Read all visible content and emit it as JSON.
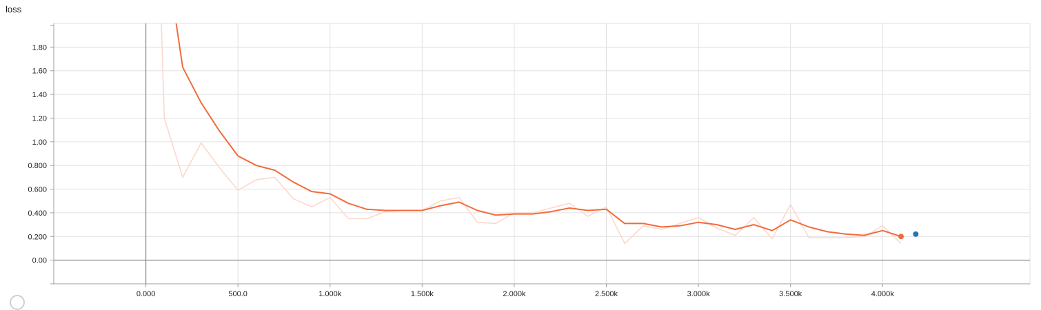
{
  "chart_data": {
    "type": "line",
    "title": "loss",
    "xlabel": "",
    "ylabel": "",
    "xlim": [
      -500,
      4800
    ],
    "ylim": [
      -0.2,
      2.0
    ],
    "grid": true,
    "x_ticks": [
      {
        "value": 0,
        "label": "0.000"
      },
      {
        "value": 500,
        "label": "500.0"
      },
      {
        "value": 1000,
        "label": "1.000k"
      },
      {
        "value": 1500,
        "label": "1.500k"
      },
      {
        "value": 2000,
        "label": "2.000k"
      },
      {
        "value": 2500,
        "label": "2.500k"
      },
      {
        "value": 3000,
        "label": "3.000k"
      },
      {
        "value": 3500,
        "label": "3.500k"
      },
      {
        "value": 4000,
        "label": "4.000k"
      }
    ],
    "y_ticks": [
      {
        "value": 0.0,
        "label": "0.00"
      },
      {
        "value": 0.2,
        "label": "0.200"
      },
      {
        "value": 0.4,
        "label": "0.400"
      },
      {
        "value": 0.6,
        "label": "0.600"
      },
      {
        "value": 0.8,
        "label": "0.800"
      },
      {
        "value": 1.0,
        "label": "1.00"
      },
      {
        "value": 1.2,
        "label": "1.20"
      },
      {
        "value": 1.4,
        "label": "1.40"
      },
      {
        "value": 1.6,
        "label": "1.60"
      },
      {
        "value": 1.8,
        "label": "1.80"
      }
    ],
    "series": [
      {
        "role": "raw",
        "color": "#fcd8cc",
        "x": [
          80,
          100,
          200,
          300,
          400,
          500,
          600,
          700,
          800,
          900,
          1000,
          1100,
          1200,
          1300,
          1400,
          1500,
          1600,
          1700,
          1800,
          1900,
          2000,
          2100,
          2200,
          2300,
          2400,
          2500,
          2600,
          2700,
          2800,
          2900,
          3000,
          3100,
          3200,
          3300,
          3400,
          3500,
          3600,
          3700,
          3800,
          3900,
          4000,
          4100
        ],
        "values": [
          2.2,
          1.2,
          0.7,
          0.99,
          0.78,
          0.59,
          0.68,
          0.7,
          0.52,
          0.45,
          0.53,
          0.35,
          0.35,
          0.41,
          0.42,
          0.42,
          0.5,
          0.53,
          0.32,
          0.31,
          0.4,
          0.4,
          0.44,
          0.48,
          0.37,
          0.45,
          0.14,
          0.29,
          0.26,
          0.31,
          0.36,
          0.27,
          0.21,
          0.36,
          0.18,
          0.47,
          0.19,
          0.19,
          0.19,
          0.2,
          0.29,
          0.14
        ]
      },
      {
        "role": "smoothed",
        "color": "#f26b3a",
        "x": [
          160,
          200,
          300,
          400,
          500,
          600,
          700,
          800,
          900,
          1000,
          1100,
          1200,
          1300,
          1400,
          1500,
          1600,
          1700,
          1800,
          1900,
          2000,
          2100,
          2200,
          2300,
          2400,
          2500,
          2600,
          2700,
          2800,
          2900,
          3000,
          3100,
          3200,
          3300,
          3400,
          3500,
          3600,
          3700,
          3800,
          3900,
          4000,
          4100
        ],
        "values": [
          2.05,
          1.63,
          1.33,
          1.09,
          0.88,
          0.8,
          0.76,
          0.66,
          0.58,
          0.56,
          0.48,
          0.43,
          0.42,
          0.42,
          0.42,
          0.46,
          0.49,
          0.42,
          0.38,
          0.39,
          0.39,
          0.41,
          0.44,
          0.42,
          0.43,
          0.31,
          0.31,
          0.28,
          0.29,
          0.32,
          0.3,
          0.26,
          0.3,
          0.25,
          0.34,
          0.28,
          0.24,
          0.22,
          0.21,
          0.25,
          0.2
        ]
      }
    ],
    "markers": [
      {
        "x": 4100,
        "y": 0.2,
        "color": "#f26b3a"
      },
      {
        "x": 4180,
        "y": 0.22,
        "color": "#1f77b4"
      }
    ]
  },
  "colors": {
    "axis": "#9e9e9e",
    "zero_line": "#888888",
    "grid": "#e0e0e0"
  }
}
